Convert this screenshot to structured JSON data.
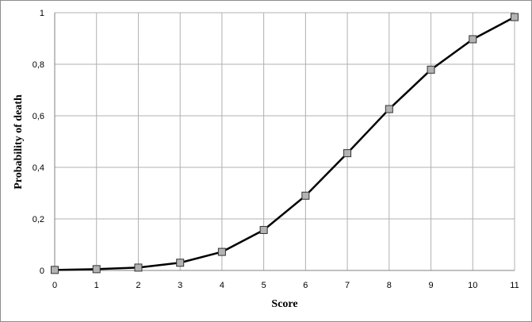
{
  "chart_data": {
    "type": "line",
    "title": "",
    "xlabel": "Score",
    "ylabel": "Probability  of death",
    "x": [
      0,
      1,
      2,
      3,
      4,
      5,
      6,
      7,
      8,
      9,
      10,
      11
    ],
    "series": [
      {
        "values": [
          0.002,
          0.005,
          0.011,
          0.03,
          0.072,
          0.157,
          0.29,
          0.455,
          0.626,
          0.779,
          0.897,
          0.983
        ]
      }
    ],
    "xlim": [
      0,
      11
    ],
    "ylim": [
      0,
      1
    ],
    "x_ticks": [
      "0",
      "1",
      "2",
      "3",
      "4",
      "5",
      "6",
      "7",
      "8",
      "9",
      "10",
      "11"
    ],
    "y_ticks": [
      "0",
      "0,2",
      "0,4",
      "0,6",
      "0,8",
      "1"
    ],
    "grid": true,
    "legend": "none",
    "colors": {
      "line": "#000000",
      "marker_fill": "#b3b3b3",
      "marker_stroke": "#333333",
      "grid": "#b0b0b0",
      "frame": "#8c8c8c"
    }
  }
}
